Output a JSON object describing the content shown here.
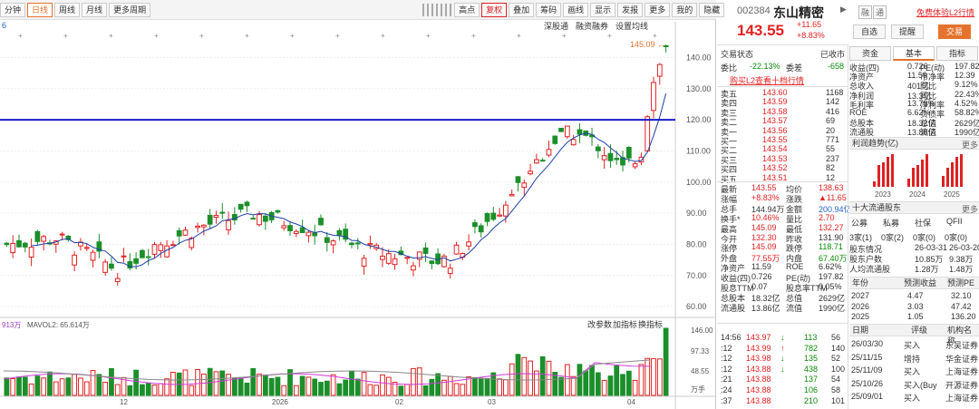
{
  "toolbar": {
    "items": [
      "分钟",
      "日线",
      "周线",
      "月线",
      "更多周期",
      "",
      "",
      "",
      "",
      "",
      "",
      "",
      "高点",
      "复权",
      "叠加",
      "筹码",
      "画线",
      "显示",
      "发报",
      "更多",
      "我的",
      "隐藏"
    ],
    "active": "日线",
    "red": "复权"
  },
  "sublinks": [
    "深股通",
    "融资融券",
    "设置均线"
  ],
  "legend_left": "6",
  "price_axis": [
    "140.00",
    "130.00",
    "120.00",
    "110.00",
    "100.00",
    "90.00",
    "80.00",
    "70.00",
    "60.00"
  ],
  "high_label": "145.09",
  "vol_legend": {
    "vol": "913万",
    "mavol": "MAVOL2: 65.614万"
  },
  "vol_menu": [
    "改参数",
    "加指标",
    "换指标"
  ],
  "vol_axis": [
    "146.00",
    "97.33",
    "48.55",
    "万手"
  ],
  "x_axis": [
    "12",
    "2026",
    "02",
    "03",
    "04"
  ],
  "stock": {
    "code": "002384",
    "name": "东山精密",
    "price": "143.55",
    "chg": "+11.65",
    "pct": "+8.83%",
    "tags": [
      "融",
      "通"
    ],
    "l2": "免费体验L2行情",
    "btn_self": "自选",
    "btn_remind": "提醒",
    "btn_trade": "交易"
  },
  "tabs": [
    "资金",
    "基本",
    "指标"
  ],
  "fund": [
    [
      "收益(四)",
      "0.726",
      "PE(动)",
      "197.82"
    ],
    [
      "净资产",
      "11.59",
      "市净率",
      "12.39"
    ],
    [
      "总收入",
      "401亿",
      "同比",
      "9.12%"
    ],
    [
      "净利润",
      "13.3亿",
      "同比",
      "22.43%"
    ],
    [
      "毛利率",
      "13.79%",
      "净利率",
      "4.52%"
    ],
    [
      "ROE",
      "6.62%",
      "负债率",
      "58.82%"
    ],
    [
      "总股本",
      "18.32亿",
      "总值",
      "2629亿"
    ],
    [
      "流通股",
      "13.86亿",
      "流值",
      "1990亿"
    ]
  ],
  "trade_status": "交易状态",
  "trade_status_val": "已收市",
  "weibi": {
    "label": "委比",
    "val": "-22.13%",
    "label2": "委差",
    "val2": "-658"
  },
  "l2buy": "购买L2查看十档行情",
  "sells": [
    [
      "卖五",
      "143.60",
      "1168"
    ],
    [
      "卖四",
      "143.59",
      "142"
    ],
    [
      "卖三",
      "143.58",
      "416"
    ],
    [
      "卖二",
      "143.57",
      "69"
    ],
    [
      "卖一",
      "143.56",
      "20"
    ]
  ],
  "buys": [
    [
      "买一",
      "143.55",
      "771"
    ],
    [
      "买二",
      "143.54",
      "55"
    ],
    [
      "买三",
      "143.53",
      "237"
    ],
    [
      "买四",
      "143.52",
      "82"
    ],
    [
      "买五",
      "143.51",
      "12"
    ]
  ],
  "quote": [
    [
      "最新",
      "143.55",
      "均价",
      "138.63"
    ],
    [
      "涨幅",
      "+8.83%",
      "涨跌",
      "▲11.65"
    ],
    [
      "总手",
      "144.94万",
      "金额",
      "200.94亿"
    ],
    [
      "换手*",
      "10.46%",
      "量比",
      "2.70"
    ],
    [
      "最高",
      "145.09",
      "最低",
      "132.27"
    ],
    [
      "今开",
      "132.30",
      "昨收",
      "131.90"
    ],
    [
      "涨停",
      "145.09",
      "跌停",
      "118.71"
    ],
    [
      "外盘",
      "77.55万",
      "内盘",
      "67.40万"
    ],
    [
      "净资产",
      "11.59",
      "ROE",
      "6.62%"
    ],
    [
      "收益(四)",
      "0.726",
      "PE(动)",
      "197.82"
    ],
    [
      "股息TTM",
      "0.07",
      "股息率TTM",
      "0.05%"
    ],
    [
      "总股本",
      "18.32亿",
      "总值",
      "2629亿"
    ],
    [
      "流通股",
      "13.86亿",
      "流值",
      "1990亿"
    ]
  ],
  "profit_title": "利润趋势(亿)",
  "more": "更多",
  "profit_years": [
    "2023",
    "2024",
    "2025"
  ],
  "profit_values": [
    [
      2,
      8,
      9,
      11,
      12
    ],
    [
      3,
      7,
      8,
      10,
      12
    ],
    [
      4,
      7,
      9,
      11,
      12
    ]
  ],
  "holders_title": "十大流通股东",
  "holders_head": [
    "公募",
    "私募",
    "社保",
    "QFII"
  ],
  "holders_vals": [
    "3家(1)",
    "0家(2)",
    "0家(0)",
    "0家(0)"
  ],
  "holders_rows": [
    [
      "股东情况",
      "26-03-31",
      "26-03-20"
    ],
    [
      "股东户数",
      "10.85万",
      "9.38万"
    ],
    [
      "人均流通股",
      "1.28万",
      "1.48万"
    ]
  ],
  "forecast_head": [
    "年份",
    "预测收益",
    "预测PE"
  ],
  "forecast": [
    [
      "2027",
      "4.47",
      "32.10"
    ],
    [
      "2026",
      "3.03",
      "47.42"
    ],
    [
      "2025",
      "1.05",
      "136.20"
    ]
  ],
  "ticks": [
    [
      "14:56",
      "143.97",
      "↓",
      "113",
      "56"
    ],
    [
      ":12",
      "143.99",
      "↑",
      "782",
      "140"
    ],
    [
      ":12",
      "143.98",
      "↓",
      "135",
      "52"
    ],
    [
      ":12",
      "143.88",
      "↓",
      "438",
      "100"
    ],
    [
      ":21",
      "143.88",
      "",
      "137",
      "54"
    ],
    [
      ":24",
      "143.88",
      "",
      "106",
      "58"
    ],
    [
      ":37",
      "143.88",
      "",
      "210",
      "101"
    ]
  ],
  "ratings_head": [
    "日期",
    "评级",
    "机构名称"
  ],
  "ratings": [
    [
      "26/03/30",
      "买入",
      "东吴证券"
    ],
    [
      "25/11/15",
      "增持",
      "华金证券"
    ],
    [
      "25/11/09",
      "买入",
      "上海证券"
    ],
    [
      "25/10/26",
      "买入(Buy",
      "开源证券"
    ],
    [
      "25/09/01",
      "买入",
      "上海证券"
    ]
  ],
  "colors": {
    "up": "#e32222",
    "down": "#1b8f2a",
    "ma": "#1f3fa8",
    "hline": "#1a1ac8",
    "orange": "#e6732d"
  },
  "chart_data": {
    "type": "candlestick",
    "ylim": [
      58,
      148
    ],
    "resistance": 120,
    "last_close": 143.55
  }
}
